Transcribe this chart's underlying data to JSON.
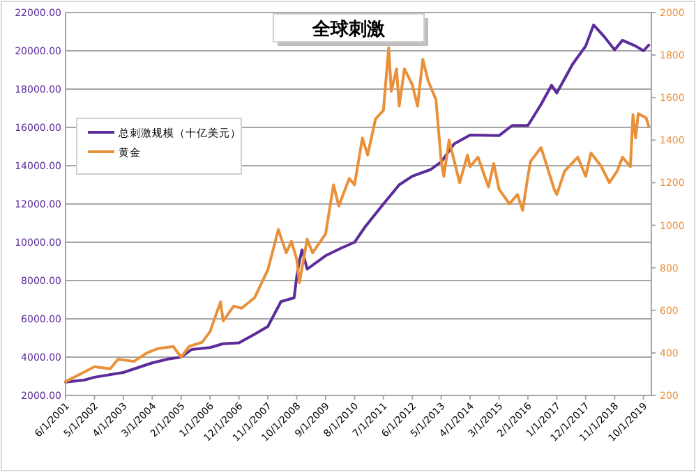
{
  "chart_data": {
    "type": "line",
    "title": "全球刺激",
    "legend": "top left",
    "grid": "y",
    "xlim": [
      "2001-06",
      "2020-01"
    ],
    "xticks": [
      {
        "value": "2001-06",
        "label": "6/1/2001"
      },
      {
        "value": "2002-05",
        "label": "5/1/2002"
      },
      {
        "value": "2003-04",
        "label": "4/1/2003"
      },
      {
        "value": "2004-03",
        "label": "3/1/2004"
      },
      {
        "value": "2005-02",
        "label": "2/1/2005"
      },
      {
        "value": "2006-01",
        "label": "1/1/2006"
      },
      {
        "value": "2006-12",
        "label": "12/1/2006"
      },
      {
        "value": "2007-11",
        "label": "11/1/2007"
      },
      {
        "value": "2008-10",
        "label": "10/1/2008"
      },
      {
        "value": "2009-09",
        "label": "9/1/2009"
      },
      {
        "value": "2010-08",
        "label": "8/1/2010"
      },
      {
        "value": "2011-07",
        "label": "7/1/2011"
      },
      {
        "value": "2012-06",
        "label": "6/1/2012"
      },
      {
        "value": "2013-05",
        "label": "5/1/2013"
      },
      {
        "value": "2014-04",
        "label": "4/1/2014"
      },
      {
        "value": "2015-03",
        "label": "3/1/2015"
      },
      {
        "value": "2016-02",
        "label": "2/1/2016"
      },
      {
        "value": "2017-01",
        "label": "1/1/2017"
      },
      {
        "value": "2017-12",
        "label": "12/1/2017"
      },
      {
        "value": "2018-11",
        "label": "11/1/2018"
      },
      {
        "value": "2019-10",
        "label": "10/1/2019"
      }
    ],
    "ylim": [
      2000,
      22000
    ],
    "yticks": [
      {
        "value": 2000,
        "label": "2000.00"
      },
      {
        "value": 4000,
        "label": "4000.00"
      },
      {
        "value": 6000,
        "label": "6000.00"
      },
      {
        "value": 8000,
        "label": "8000.00"
      },
      {
        "value": 10000,
        "label": "10000.00"
      },
      {
        "value": 12000,
        "label": "12000.00"
      },
      {
        "value": 14000,
        "label": "14000.00"
      },
      {
        "value": 16000,
        "label": "16000.00"
      },
      {
        "value": 18000,
        "label": "18000.00"
      },
      {
        "value": 20000,
        "label": "20000.00"
      },
      {
        "value": 22000,
        "label": "22000.00"
      }
    ],
    "y2lim": [
      200,
      2000
    ],
    "y2ticks": [
      200,
      400,
      600,
      800,
      1000,
      1200,
      1400,
      1600,
      1800,
      2000
    ],
    "series": [
      {
        "name": "总刺激规模（十亿美元）",
        "color": "#5b2c9a",
        "x": [
          "2001-06",
          "2002-01",
          "2002-05",
          "2003-04",
          "2004-03",
          "2004-09",
          "2005-02",
          "2005-06",
          "2006-01",
          "2006-06",
          "2006-12",
          "2007-06",
          "2007-11",
          "2008-04",
          "2008-09",
          "2008-10",
          "2008-11",
          "2008-12",
          "2009-02",
          "2009-09",
          "2010-03",
          "2010-08",
          "2010-12",
          "2011-07",
          "2012-01",
          "2012-06",
          "2013-01",
          "2013-05",
          "2013-10",
          "2014-04",
          "2015-03",
          "2015-08",
          "2016-02",
          "2016-07",
          "2016-11",
          "2017-01",
          "2017-07",
          "2017-12",
          "2018-03",
          "2018-07",
          "2018-11",
          "2019-02",
          "2019-07",
          "2019-10",
          "2019-12"
        ],
        "values": [
          2700,
          2800,
          2950,
          3200,
          3700,
          3900,
          4000,
          4400,
          4500,
          4700,
          4750,
          5200,
          5600,
          6900,
          7100,
          8200,
          9000,
          9600,
          8600,
          9300,
          9700,
          10000,
          10800,
          12000,
          13000,
          13450,
          13800,
          14200,
          15150,
          15600,
          15570,
          16100,
          16100,
          17200,
          18200,
          17800,
          19300,
          20250,
          21350,
          20750,
          20050,
          20550,
          20250,
          20000,
          20300
        ]
      },
      {
        "name": "黄金",
        "color": "#e8913a",
        "axis": "y2",
        "x": [
          "2001-06",
          "2001-10",
          "2002-05",
          "2002-11",
          "2003-02",
          "2003-08",
          "2004-01",
          "2004-05",
          "2004-11",
          "2005-02",
          "2005-05",
          "2005-10",
          "2006-01",
          "2006-05",
          "2006-06",
          "2006-10",
          "2007-01",
          "2007-06",
          "2007-11",
          "2008-03",
          "2008-06",
          "2008-08",
          "2008-10",
          "2008-11",
          "2009-02",
          "2009-04",
          "2009-09",
          "2009-12",
          "2010-02",
          "2010-06",
          "2010-08",
          "2010-11",
          "2011-01",
          "2011-04",
          "2011-07",
          "2011-09",
          "2011-10",
          "2011-12",
          "2012-01",
          "2012-03",
          "2012-06",
          "2012-08",
          "2012-10",
          "2012-12",
          "2013-03",
          "2013-05",
          "2013-06",
          "2013-08",
          "2013-12",
          "2014-03",
          "2014-04",
          "2014-07",
          "2014-11",
          "2015-01",
          "2015-03",
          "2015-07",
          "2015-10",
          "2015-12",
          "2016-02",
          "2016-03",
          "2016-07",
          "2016-12",
          "2017-01",
          "2017-04",
          "2017-09",
          "2017-12",
          "2018-02",
          "2018-06",
          "2018-09",
          "2018-12",
          "2019-02",
          "2019-05",
          "2019-06",
          "2019-07",
          "2019-08",
          "2019-11",
          "2019-12"
        ],
        "values": [
          265,
          290,
          335,
          325,
          370,
          360,
          400,
          420,
          430,
          380,
          430,
          450,
          500,
          640,
          550,
          620,
          610,
          660,
          790,
          980,
          870,
          925,
          840,
          730,
          935,
          870,
          960,
          1190,
          1090,
          1220,
          1190,
          1410,
          1330,
          1500,
          1540,
          1835,
          1630,
          1735,
          1560,
          1735,
          1660,
          1560,
          1780,
          1680,
          1590,
          1300,
          1230,
          1400,
          1200,
          1330,
          1275,
          1320,
          1180,
          1290,
          1170,
          1100,
          1145,
          1070,
          1230,
          1300,
          1365,
          1170,
          1145,
          1255,
          1320,
          1230,
          1340,
          1275,
          1200,
          1255,
          1320,
          1275,
          1520,
          1410,
          1525,
          1505,
          1465
        ]
      }
    ]
  }
}
